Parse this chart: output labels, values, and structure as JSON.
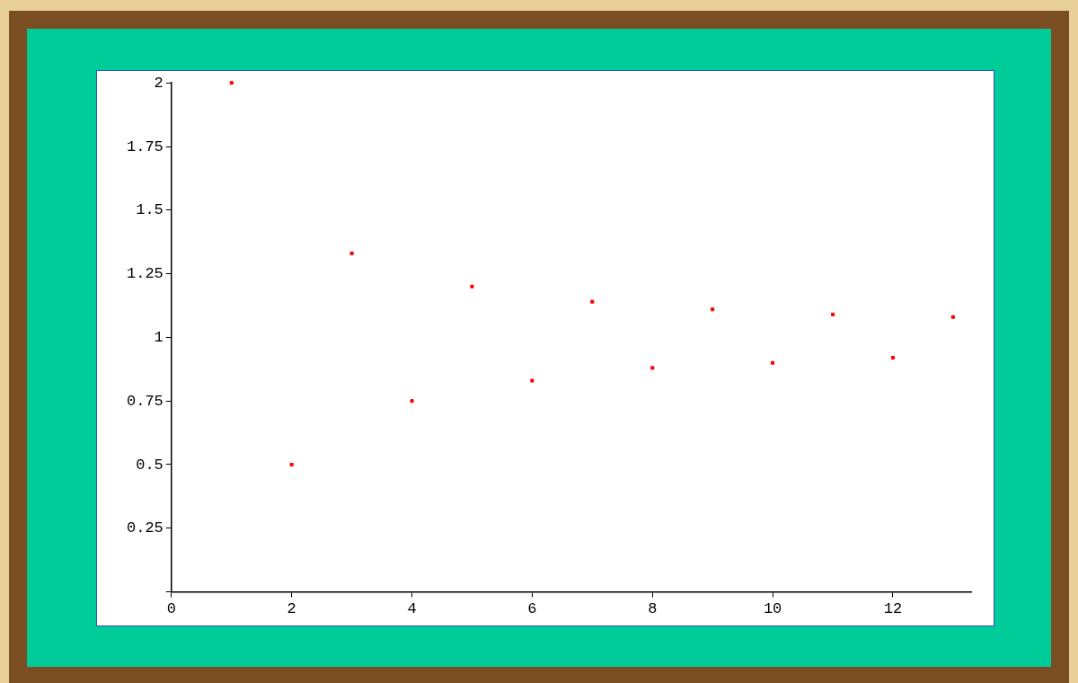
{
  "chart_data": {
    "type": "scatter",
    "x": [
      1,
      2,
      3,
      4,
      5,
      6,
      7,
      8,
      9,
      10,
      11,
      12,
      13
    ],
    "series": [
      {
        "color": "#ff0000",
        "values": [
          2,
          0.5,
          1.33,
          0.75,
          1.2,
          0.83,
          1.14,
          0.88,
          1.11,
          0.9,
          1.09,
          0.92,
          1.08
        ]
      }
    ],
    "xlim": [
      0,
      13.3
    ],
    "xticks": [
      0,
      2,
      4,
      6,
      8,
      10,
      12
    ],
    "ylim": [
      0,
      2
    ],
    "yticks": [
      {
        "value": 0,
        "label": null
      },
      0.25,
      0.5,
      0.75,
      1,
      1.25,
      1.5,
      1.75,
      2
    ],
    "marker": "square",
    "grid": false,
    "legend": false
  }
}
